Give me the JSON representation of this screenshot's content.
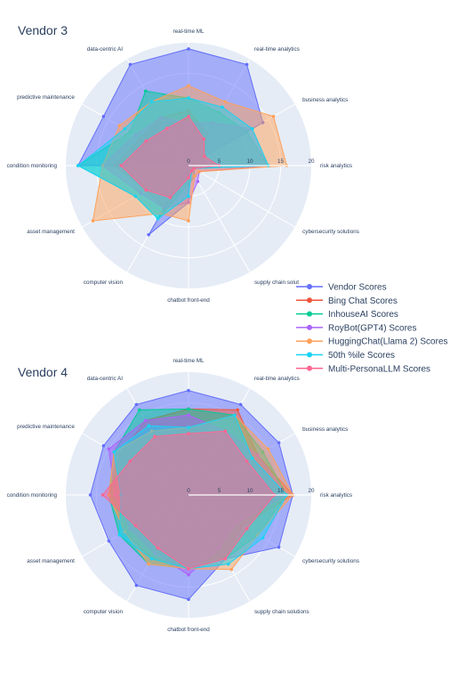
{
  "chart_data": [
    {
      "type": "radar",
      "title": "Vendor 3",
      "categories": [
        "real-time ML",
        "real-time analytics",
        "business analytics",
        "risk analytics",
        "cybersecurity solutions",
        "supply chain solut",
        "chatbot front-end",
        "computer vision",
        "asset management",
        "condition monitoring",
        "predictive maintenance",
        "data-centric AI"
      ],
      "radial_range": [
        0,
        20
      ],
      "radial_ticks": [
        "0",
        "5",
        "10",
        "15",
        "20"
      ],
      "series": [
        {
          "name": "Vendor Scores",
          "values": [
            19,
            19,
            14,
            0,
            0,
            0,
            6,
            13,
            0,
            18,
            16,
            19
          ]
        },
        {
          "name": "Bing Chat Scores",
          "values": [
            9,
            6,
            3,
            3,
            0,
            1,
            2,
            8,
            8,
            12,
            9,
            9
          ]
        },
        {
          "name": "InhouseAI Scores",
          "values": [
            11,
            10,
            11,
            13,
            1,
            2,
            3,
            10,
            10,
            18,
            11,
            14
          ]
        },
        {
          "name": "RoyBot(GPT4) Scores",
          "values": [
            7,
            8,
            12,
            13,
            2,
            3,
            6,
            8,
            9,
            14,
            10,
            9
          ]
        },
        {
          "name": "HuggingChat(Llama 2) Scores",
          "values": [
            13,
            12,
            16,
            16,
            2,
            2,
            9,
            9,
            18,
            14,
            13,
            12
          ]
        },
        {
          "name": "50th %ile Scores",
          "values": [
            11,
            11,
            12,
            13,
            1,
            1,
            5,
            10,
            10,
            18,
            12,
            12
          ]
        },
        {
          "name": "Multi-PersonaLLM Scores",
          "values": [
            8,
            5,
            3,
            5,
            1,
            1,
            2,
            6,
            8,
            11,
            8,
            7
          ]
        }
      ]
    },
    {
      "type": "radar",
      "title": "Vendor 4",
      "categories": [
        "real-time ML",
        "real-time analytics",
        "business analytics",
        "risk analytics",
        "cybersecurity solutions",
        "supply chain solutions",
        "chatbot front-end",
        "computer vision",
        "asset management",
        "condition monitoring",
        "predictive maintenance",
        "data-centric AI"
      ],
      "radial_range": [
        0,
        20
      ],
      "radial_ticks": [
        "0",
        "5",
        "10",
        "15",
        "20"
      ],
      "series": [
        {
          "name": "Vendor Scores",
          "values": [
            17,
            17,
            17,
            17,
            17,
            12,
            17,
            17,
            15,
            16,
            16,
            17
          ]
        },
        {
          "name": "Bing Chat Scores",
          "values": [
            14,
            16,
            13,
            17,
            10,
            12,
            12,
            12,
            12,
            13,
            13,
            14
          ]
        },
        {
          "name": "InhouseAI Scores",
          "values": [
            14,
            15,
            14,
            16,
            13,
            12,
            12,
            13,
            13,
            13,
            14,
            16
          ]
        },
        {
          "name": "RoyBot(GPT4) Scores",
          "values": [
            13,
            12,
            13,
            16,
            9,
            10,
            13,
            11,
            11,
            12,
            15,
            14
          ]
        },
        {
          "name": "HuggingChat(Llama 2) Scores",
          "values": [
            11,
            15,
            15,
            17,
            13,
            14,
            12,
            13,
            12,
            13,
            14,
            12
          ]
        },
        {
          "name": "50th %ile Scores",
          "values": [
            11,
            15,
            12,
            16,
            14,
            13,
            12,
            12,
            13,
            11,
            14,
            13
          ]
        },
        {
          "name": "Multi-PersonaLLM Scores",
          "values": [
            10,
            12,
            11,
            14,
            11,
            12,
            12,
            10,
            10,
            14,
            11,
            11
          ]
        }
      ]
    }
  ],
  "legend": {
    "placement": "right",
    "items": [
      {
        "label": "Vendor Scores",
        "color": "#636efa"
      },
      {
        "label": "Bing Chat Scores",
        "color": "#ef553b"
      },
      {
        "label": "InhouseAI Scores",
        "color": "#00cc96"
      },
      {
        "label": "RoyBot(GPT4) Scores",
        "color": "#ab63fa"
      },
      {
        "label": "HuggingChat(Llama 2) Scores",
        "color": "#ffa15a"
      },
      {
        "label": "50th %ile Scores",
        "color": "#19d3f3"
      },
      {
        "label": "Multi-PersonaLLM Scores",
        "color": "#ff6692"
      }
    ]
  }
}
